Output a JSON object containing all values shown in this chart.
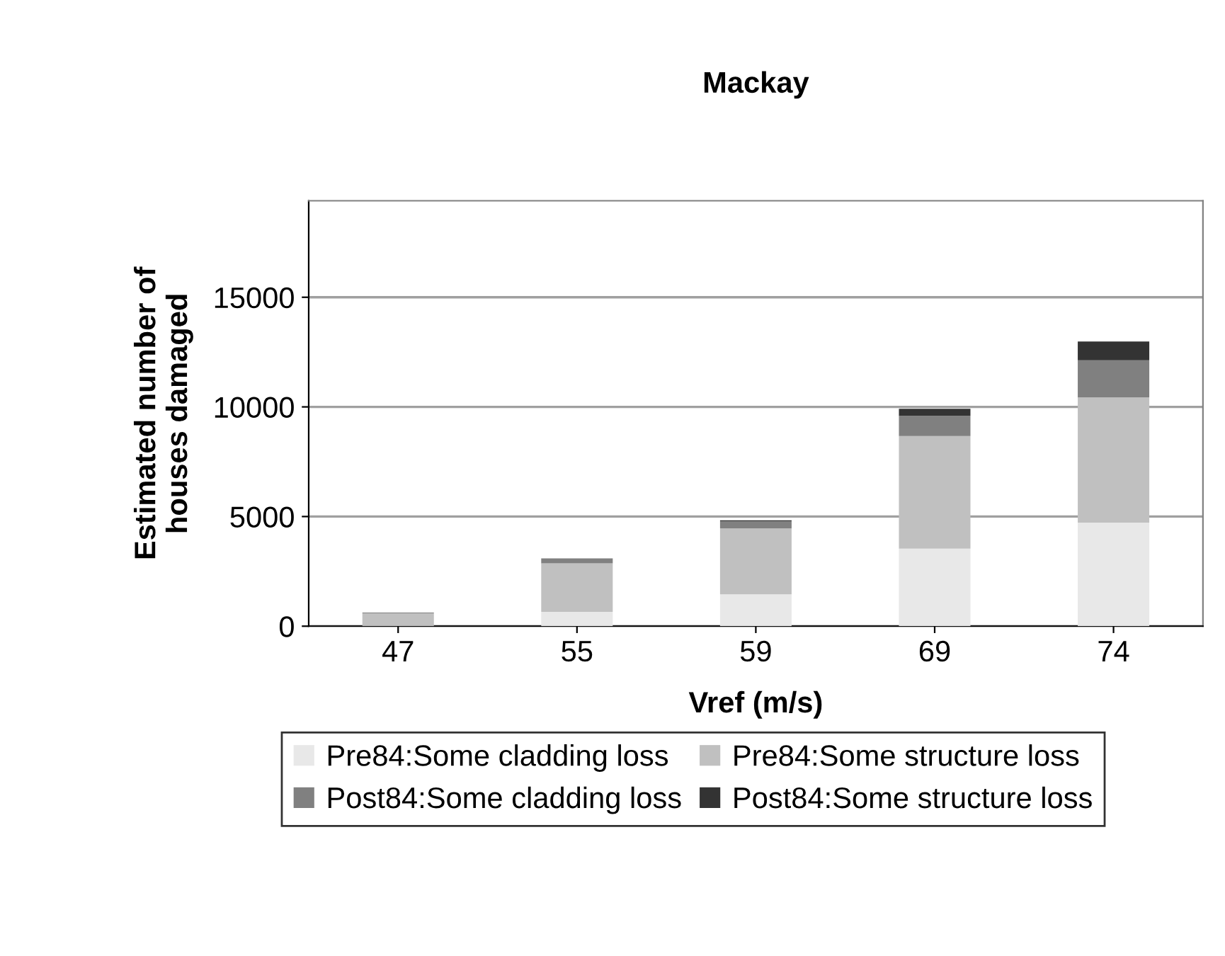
{
  "chart_data": {
    "type": "bar",
    "title": "Mackay",
    "xlabel": "Vref (m/s)",
    "ylabel": "Estimated number of\nhouses damaged",
    "categories": [
      "47",
      "55",
      "59",
      "69",
      "74"
    ],
    "stacked": true,
    "series": [
      {
        "name": "Pre84:Some cladding loss",
        "color": "#e8e8e8",
        "values": [
          null,
          650,
          1450,
          3540,
          4720
        ]
      },
      {
        "name": "Pre84:Some structure loss",
        "color": "#c0c0c0",
        "values": [
          590,
          2220,
          3010,
          5130,
          5710
        ]
      },
      {
        "name": "Post84:Some cladding loss",
        "color": "#808080",
        "values": [
          30,
          220,
          320,
          920,
          1700
        ]
      },
      {
        "name": "Post84:Some structure loss",
        "color": "#333333",
        "values": [
          0,
          0,
          50,
          320,
          850
        ]
      }
    ],
    "ylim": [
      0,
      19400
    ],
    "yticks": [
      0,
      5000,
      10000,
      15000
    ],
    "grid": "y",
    "legend": "bottom"
  }
}
